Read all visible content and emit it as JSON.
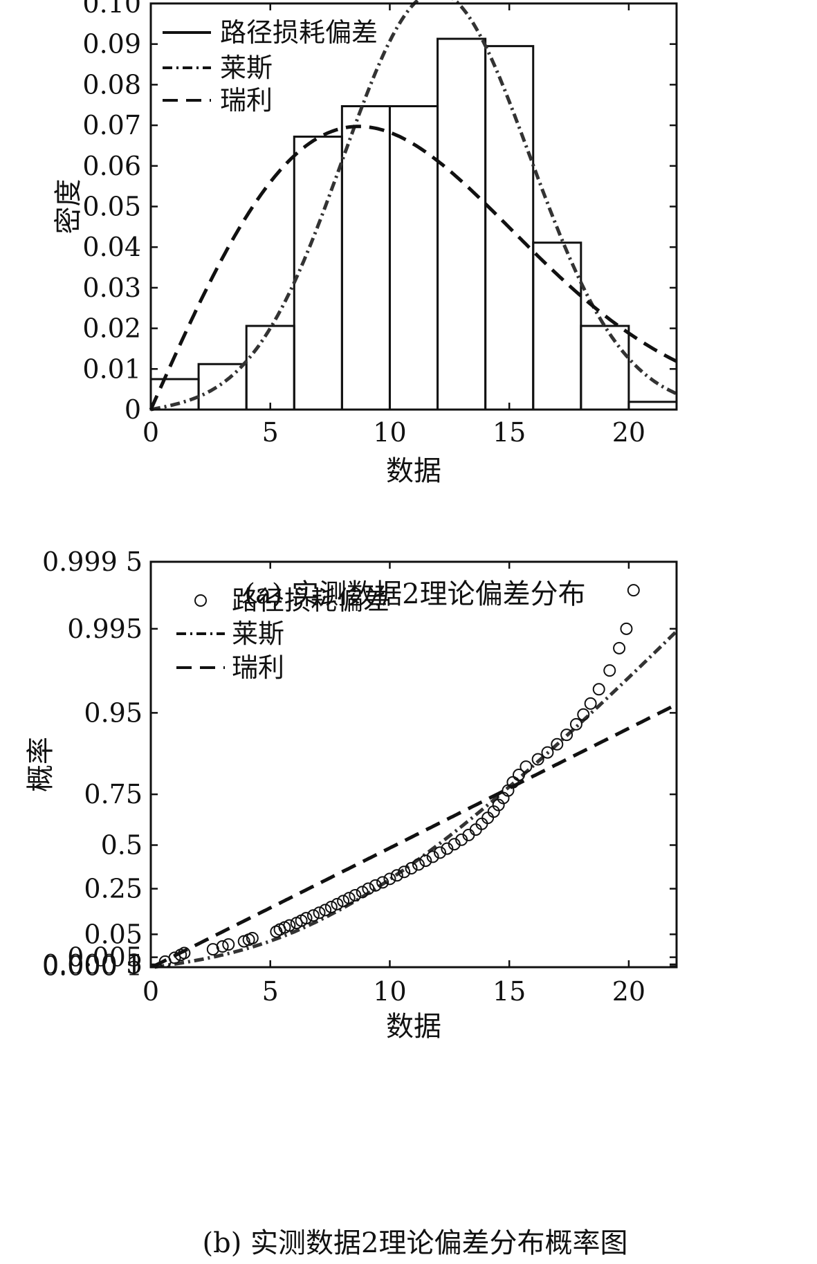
{
  "chart_data": [
    {
      "type": "bar",
      "title": "",
      "caption": "(a) 实测数据2理论偏差分布",
      "xlabel": "数据",
      "ylabel": "密度",
      "xlim": [
        0,
        22
      ],
      "ylim": [
        0,
        0.1
      ],
      "xticks": [
        0,
        5,
        10,
        15,
        20
      ],
      "xtick_labels": [
        "0",
        "5",
        "10",
        "15",
        "20"
      ],
      "yticks": [
        0,
        0.01,
        0.02,
        0.03,
        0.04,
        0.05,
        0.06,
        0.07,
        0.08,
        0.09,
        0.1
      ],
      "ytick_labels": [
        "0",
        "0.01",
        "0.02",
        "0.03",
        "0.04",
        "0.05",
        "0.06",
        "0.07",
        "0.08",
        "0.09",
        "0.10"
      ],
      "bin_width": 2,
      "bins": [
        0,
        2,
        4,
        6,
        8,
        10,
        12,
        14,
        16,
        18,
        20
      ],
      "values": [
        0.0075,
        0.0112,
        0.0206,
        0.0672,
        0.0747,
        0.0747,
        0.0913,
        0.0895,
        0.0411,
        0.0206,
        0.0019
      ],
      "legend": [
        {
          "label": "路径损耗偏差",
          "style": "solid"
        },
        {
          "label": "莱斯",
          "style": "dashdot"
        },
        {
          "label": "瑞利",
          "style": "dashed"
        }
      ],
      "legend_position": "top-left",
      "series": [
        {
          "name": "莱斯",
          "dist": "rice",
          "nu": 11.3,
          "sigma": 4.0
        },
        {
          "name": "瑞利",
          "dist": "rayleigh",
          "sigma": 8.7
        }
      ]
    },
    {
      "type": "scatter",
      "title": "",
      "caption": "(b) 实测数据2理论偏差分布概率图",
      "xlabel": "数据",
      "ylabel": "概率",
      "xlim": [
        0,
        22
      ],
      "yscale": "rayleigh-probability",
      "ylim": [
        1e-05,
        0.9995
      ],
      "xticks": [
        0,
        5,
        10,
        15,
        20
      ],
      "xtick_labels": [
        "0",
        "5",
        "10",
        "15",
        "20"
      ],
      "yticks": [
        0.0001,
        0.0005,
        0.005,
        0.05,
        0.25,
        0.5,
        0.75,
        0.95,
        0.995,
        0.9995
      ],
      "ytick_labels": [
        "0.000 1",
        "0.000 5",
        "0.005",
        "0.05",
        "0.25",
        "0.5",
        "0.75",
        "0.95",
        "0.995",
        "0.999 5"
      ],
      "legend": [
        {
          "label": "路径损耗偏差",
          "style": "circle"
        },
        {
          "label": "莱斯",
          "style": "dashdot"
        },
        {
          "label": "瑞利",
          "style": "dashed"
        }
      ],
      "legend_position": "top-left",
      "points": [
        [
          0.6,
          0.0017
        ],
        [
          1.0,
          0.0045
        ],
        [
          1.25,
          0.0075
        ],
        [
          1.4,
          0.0098
        ],
        [
          2.6,
          0.0155
        ],
        [
          3.0,
          0.0205
        ],
        [
          3.25,
          0.0245
        ],
        [
          3.9,
          0.0315
        ],
        [
          4.1,
          0.0355
        ],
        [
          4.25,
          0.0395
        ],
        [
          5.25,
          0.058
        ],
        [
          5.4,
          0.065
        ],
        [
          5.6,
          0.072
        ],
        [
          5.8,
          0.079
        ],
        [
          6.1,
          0.088
        ],
        [
          6.3,
          0.097
        ],
        [
          6.5,
          0.107
        ],
        [
          6.8,
          0.118
        ],
        [
          7.05,
          0.13
        ],
        [
          7.3,
          0.142
        ],
        [
          7.55,
          0.156
        ],
        [
          7.8,
          0.17
        ],
        [
          8.05,
          0.185
        ],
        [
          8.3,
          0.2
        ],
        [
          8.55,
          0.215
        ],
        [
          8.85,
          0.232
        ],
        [
          9.1,
          0.25
        ],
        [
          9.4,
          0.268
        ],
        [
          9.7,
          0.285
        ],
        [
          10.0,
          0.305
        ],
        [
          10.3,
          0.325
        ],
        [
          10.6,
          0.345
        ],
        [
          10.9,
          0.366
        ],
        [
          11.2,
          0.388
        ],
        [
          11.5,
          0.41
        ],
        [
          11.8,
          0.433
        ],
        [
          12.1,
          0.457
        ],
        [
          12.4,
          0.48
        ],
        [
          12.7,
          0.505
        ],
        [
          13.0,
          0.53
        ],
        [
          13.3,
          0.556
        ],
        [
          13.6,
          0.585
        ],
        [
          13.85,
          0.615
        ],
        [
          14.1,
          0.645
        ],
        [
          14.35,
          0.675
        ],
        [
          14.55,
          0.705
        ],
        [
          14.75,
          0.735
        ],
        [
          14.95,
          0.765
        ],
        [
          15.15,
          0.795
        ],
        [
          15.4,
          0.82
        ],
        [
          15.7,
          0.845
        ],
        [
          16.2,
          0.865
        ],
        [
          16.6,
          0.882
        ],
        [
          17.0,
          0.9
        ],
        [
          17.4,
          0.918
        ],
        [
          17.8,
          0.935
        ],
        [
          18.1,
          0.948
        ],
        [
          18.4,
          0.96
        ],
        [
          18.75,
          0.972
        ],
        [
          19.2,
          0.983
        ],
        [
          19.6,
          0.991
        ],
        [
          19.9,
          0.995
        ],
        [
          20.2,
          0.9986
        ]
      ],
      "series": [
        {
          "name": "莱斯",
          "dist": "rice",
          "nu": 11.3,
          "sigma": 4.0
        },
        {
          "name": "瑞利",
          "dist": "rayleigh",
          "sigma": 8.7
        }
      ]
    }
  ]
}
